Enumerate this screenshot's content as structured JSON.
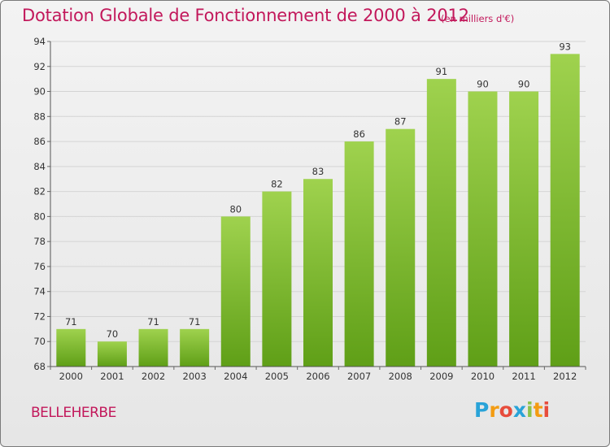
{
  "title": "Dotation Globale de Fonctionnement de 2000 à 2012",
  "subtitle": "(en milliers d'€)",
  "commune": "BELLEHERBE",
  "brand": {
    "letters": [
      "P",
      "r",
      "o",
      "x",
      "i",
      "t",
      "i"
    ],
    "colors": [
      "#29a3d8",
      "#f39c12",
      "#e74c3c",
      "#29a3d8",
      "#8bc34a",
      "#f39c12",
      "#e74c3c"
    ]
  },
  "colors": {
    "bar_top": "#9fd24e",
    "bar_bottom": "#5f9f17",
    "title": "#c2185b",
    "grid": "#d4d4d4"
  },
  "chart_data": {
    "type": "bar",
    "title": "Dotation Globale de Fonctionnement de 2000 à 2012",
    "subtitle": "(en milliers d'€)",
    "categories": [
      "2000",
      "2001",
      "2002",
      "2003",
      "2004",
      "2005",
      "2006",
      "2007",
      "2008",
      "2009",
      "2010",
      "2011",
      "2012"
    ],
    "values": [
      71,
      70,
      71,
      71,
      80,
      82,
      83,
      86,
      87,
      91,
      90,
      90,
      93
    ],
    "ylim": [
      68,
      94
    ],
    "yticks": [
      68,
      70,
      72,
      74,
      76,
      78,
      80,
      82,
      84,
      86,
      88,
      90,
      92,
      94
    ],
    "xlabel": "",
    "ylabel": "",
    "grid": true
  }
}
